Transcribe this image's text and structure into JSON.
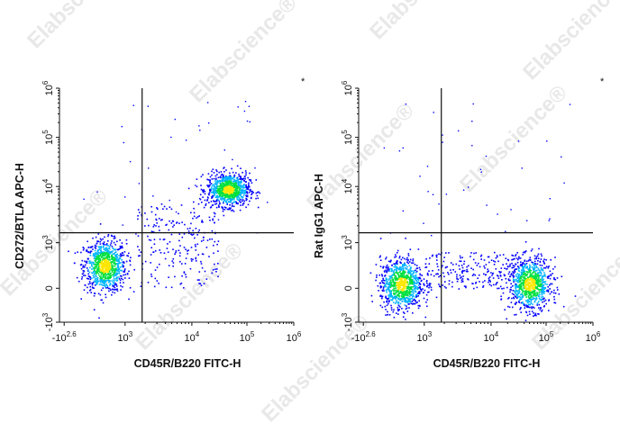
{
  "chart_data": [
    {
      "type": "scatter",
      "subtype": "flow-cytometry-density-dot-plot",
      "title": "",
      "xlabel": "CD45R/B220 FITC-H",
      "ylabel": "CD272/BTLA APC-H",
      "corner_mark": "*",
      "x_scale": "biexponential",
      "y_scale": "biexponential",
      "x_ticks": [
        "-10^2.6",
        "10^3",
        "10^4",
        "10^5",
        "10^6"
      ],
      "y_ticks": [
        "-10^3",
        "0",
        "10^3",
        "10^4",
        "10^5",
        "10^6"
      ],
      "gate": {
        "x": 1800,
        "y": 1500
      },
      "color_scale": "blue-cyan-green-yellow-red (low to high density)",
      "populations": [
        {
          "name_hint": "B220- BTLA+/- cells",
          "x_center": 450,
          "y_center": 500,
          "relative_density": "high"
        },
        {
          "name_hint": "B220+ BTLA+ cells",
          "x_center": 45000,
          "y_center": 9000,
          "relative_density": "high"
        },
        {
          "name_hint": "transition cells",
          "x_range": [
            1500,
            30000
          ],
          "y_range": [
            0,
            5000
          ],
          "relative_density": "low"
        }
      ]
    },
    {
      "type": "scatter",
      "subtype": "flow-cytometry-density-dot-plot",
      "title": "",
      "xlabel": "CD45R/B220 FITC-H",
      "ylabel": "Rat IgG1 APC-H",
      "corner_mark": "*",
      "x_scale": "biexponential",
      "y_scale": "biexponential",
      "x_ticks": [
        "-10^2.6",
        "10^3",
        "10^4",
        "10^5",
        "10^6"
      ],
      "y_ticks": [
        "-10^3",
        "0",
        "10^3",
        "10^4",
        "10^5",
        "10^6"
      ],
      "gate": {
        "x": 1800,
        "y": 1500
      },
      "color_scale": "blue-cyan-green-yellow-red (low to high density)",
      "populations": [
        {
          "name_hint": "B220- isotype",
          "x_center": 380,
          "y_center": 100,
          "relative_density": "high"
        },
        {
          "name_hint": "B220+ isotype",
          "x_center": 50000,
          "y_center": 100,
          "relative_density": "high"
        },
        {
          "name_hint": "bridge",
          "x_range": [
            1000,
            30000
          ],
          "y_range": [
            0,
            800
          ],
          "relative_density": "low"
        }
      ]
    }
  ],
  "watermark": {
    "text": "Elabscience",
    "registered": "®"
  },
  "palette": {
    "low": "#0000ff",
    "mid_low": "#00b4ff",
    "mid": "#00e040",
    "mid_high": "#ffe600",
    "high": "#ff0000",
    "axis": "#111111",
    "gate_line": "#111111",
    "watermark": "#d6d6d6"
  }
}
